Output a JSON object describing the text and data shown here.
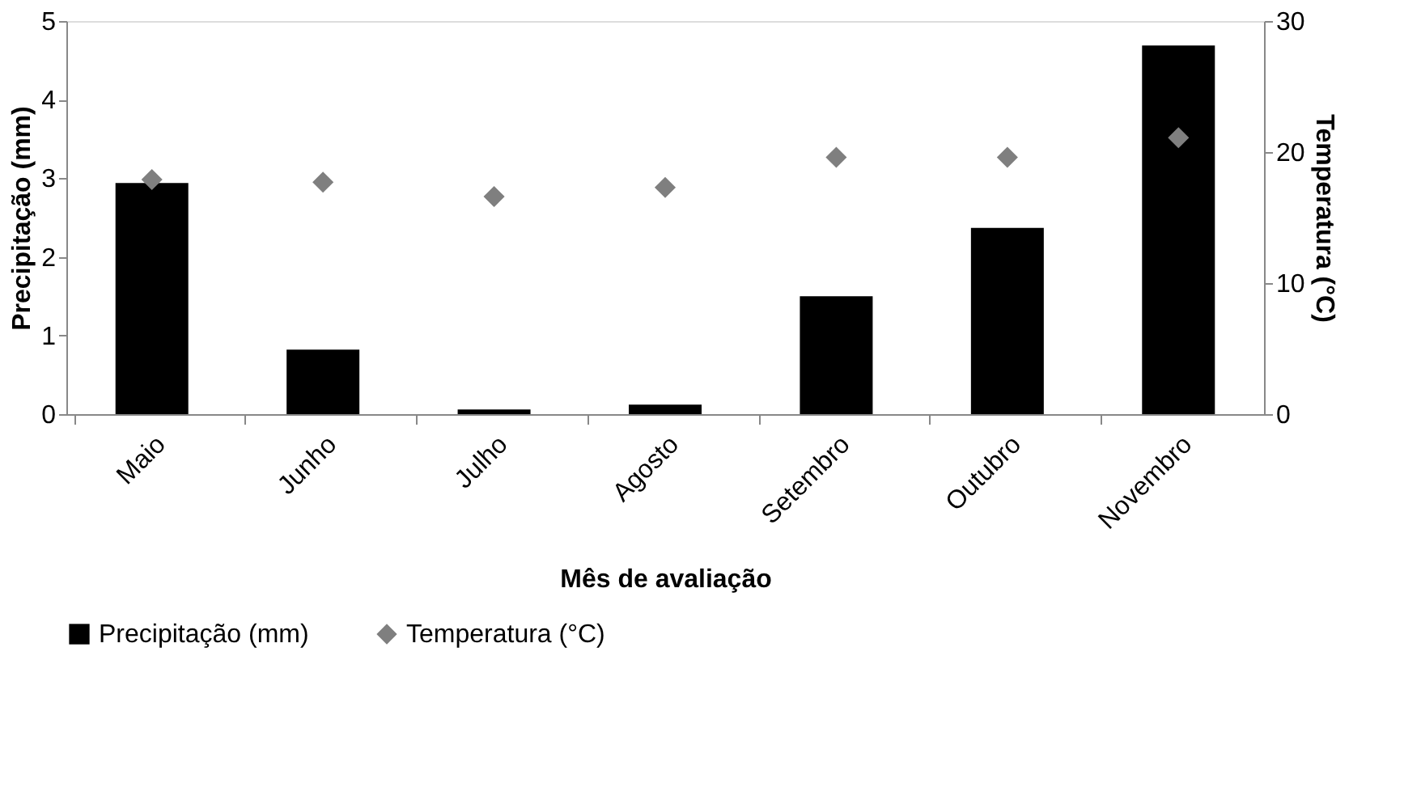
{
  "chart_data": {
    "type": "bar",
    "xlabel": "Mês de avaliação",
    "ylabel": "Precipitação (mm)",
    "y2label": "Temperatura (°C)",
    "categories": [
      "Maio",
      "Junho",
      "Julho",
      "Agosto",
      "Setembro",
      "Outubro",
      "Novembro"
    ],
    "series": [
      {
        "name": "Precipitação (mm)",
        "color": "#000000",
        "values": [
          2.94,
          0.82,
          0.06,
          0.12,
          1.5,
          2.37,
          4.69
        ]
      },
      {
        "name": "Temperatura (°C)",
        "type": "scatter",
        "axis": "y2",
        "marker": "diamond",
        "color": "#7f7f7f",
        "values": [
          17.9,
          17.7,
          16.6,
          17.3,
          19.6,
          19.6,
          21.1
        ]
      }
    ],
    "ylim": [
      0,
      5
    ],
    "yticks": [
      0,
      1,
      2,
      3,
      4,
      5
    ],
    "y2lim": [
      0,
      30
    ],
    "y2ticks": [
      0,
      10,
      20,
      30
    ],
    "grid": false,
    "legend": "bottom"
  }
}
